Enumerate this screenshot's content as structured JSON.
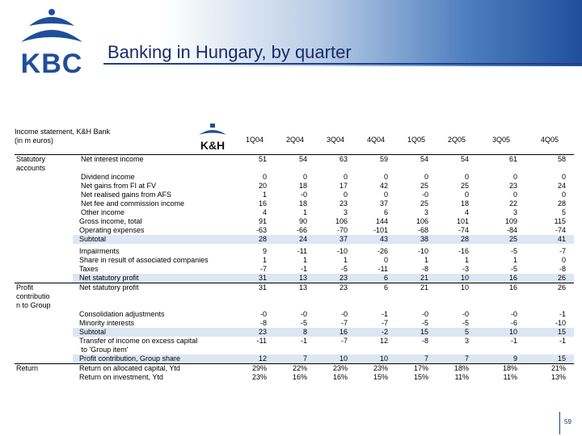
{
  "title": "Banking in Hungary, by quarter",
  "logo_text": "KBC",
  "kh_logo_text": "K&H",
  "table": {
    "header_label": "Income statement, K&H Bank\n(in m euros)",
    "columns": [
      "1Q04",
      "2Q04",
      "3Q04",
      "4Q04",
      "1Q05",
      "2Q05",
      "3Q05",
      "4Q05"
    ],
    "sections": [
      {
        "name": "Statutory\naccounts",
        "groups": [
          {
            "shade": false,
            "rows": [
              {
                "label": "Net interest income",
                "indent": "ind1",
                "values": [
                  "51",
                  "54",
                  "63",
                  "59",
                  "54",
                  "54",
                  "61",
                  "58"
                ]
              },
              {
                "label": "Dividend income",
                "indent": "ind1",
                "values": [
                  "0",
                  "0",
                  "0",
                  "0",
                  "0",
                  "0",
                  "0",
                  "0"
                ]
              },
              {
                "label": "Net gains from FI at FV",
                "indent": "ind1",
                "values": [
                  "20",
                  "18",
                  "17",
                  "42",
                  "25",
                  "25",
                  "23",
                  "24"
                ]
              },
              {
                "label": "Net realised gains from AFS",
                "indent": "ind1",
                "values": [
                  "1",
                  "-0",
                  "0",
                  "0",
                  "-0",
                  "0",
                  "0",
                  "0"
                ]
              },
              {
                "label": "Net fee and commission income",
                "indent": "ind1",
                "values": [
                  "16",
                  "18",
                  "23",
                  "37",
                  "25",
                  "18",
                  "22",
                  "28"
                ]
              },
              {
                "label": "Other income",
                "indent": "ind1",
                "values": [
                  "4",
                  "1",
                  "3",
                  "6",
                  "3",
                  "4",
                  "3",
                  "5"
                ]
              },
              {
                "label": "Gross income, total",
                "indent": "ind2",
                "values": [
                  "91",
                  "90",
                  "106",
                  "144",
                  "106",
                  "101",
                  "109",
                  "115"
                ]
              },
              {
                "label": "Operating expenses",
                "indent": "ind2",
                "values": [
                  "-63",
                  "-66",
                  "-70",
                  "-101",
                  "-68",
                  "-74",
                  "-84",
                  "-74"
                ]
              }
            ]
          },
          {
            "shade": true,
            "rows": [
              {
                "label": "Subtotal",
                "indent": "ind2",
                "values": [
                  "28",
                  "24",
                  "37",
                  "43",
                  "38",
                  "28",
                  "25",
                  "41"
                ]
              }
            ]
          },
          {
            "shade": false,
            "gap": true,
            "rows": [
              {
                "label": "Impairments",
                "indent": "ind2",
                "values": [
                  "9",
                  "-11",
                  "-10",
                  "-26",
                  "-10",
                  "-16",
                  "-5",
                  "-7"
                ]
              },
              {
                "label": "Share in result of associated companies",
                "indent": "ind2",
                "values": [
                  "1",
                  "1",
                  "1",
                  "0",
                  "1",
                  "1",
                  "1",
                  "0"
                ]
              },
              {
                "label": "Taxes",
                "indent": "ind2",
                "values": [
                  "-7",
                  "-1",
                  "-5",
                  "-11",
                  "-8",
                  "-3",
                  "-5",
                  "-8"
                ]
              }
            ]
          },
          {
            "shade": true,
            "rows": [
              {
                "label": "Net statutory profit",
                "indent": "ind2",
                "values": [
                  "31",
                  "13",
                  "23",
                  "6",
                  "21",
                  "10",
                  "16",
                  "26"
                ]
              }
            ]
          }
        ]
      },
      {
        "name": "Profit\ncontributio\nn to Group",
        "groups": [
          {
            "shade": false,
            "rows": [
              {
                "label": "Net statutory profit",
                "indent": "ind2",
                "values": [
                  "31",
                  "13",
                  "23",
                  "6",
                  "21",
                  "10",
                  "16",
                  "26"
                ]
              },
              {
                "label": "Consolidation adjustments",
                "indent": "ind2",
                "values": [
                  "-0",
                  "-0",
                  "-0",
                  "-1",
                  "-0",
                  "-0",
                  "-0",
                  "-1"
                ]
              },
              {
                "label": "Minority interests",
                "indent": "ind2",
                "values": [
                  "-8",
                  "-5",
                  "-7",
                  "-7",
                  "-5",
                  "-5",
                  "-6",
                  "-10"
                ]
              }
            ]
          },
          {
            "shade": true,
            "rows": [
              {
                "label": "Subtotal",
                "indent": "ind2",
                "values": [
                  "23",
                  "8",
                  "16",
                  "-2",
                  "15",
                  "5",
                  "10",
                  "15"
                ]
              }
            ]
          },
          {
            "shade": false,
            "rows": [
              {
                "label": "Transfer of income on excess capital\n to 'Group item'",
                "indent": "ind2",
                "values": [
                  "-11",
                  "-1",
                  "-7",
                  "12",
                  "-8",
                  "3",
                  "-1",
                  "-1"
                ]
              }
            ]
          },
          {
            "shade": true,
            "rows": [
              {
                "label": "Profit contribution, Group share",
                "indent": "ind2",
                "values": [
                  "12",
                  "7",
                  "10",
                  "10",
                  "7",
                  "7",
                  "9",
                  "15"
                ]
              }
            ]
          }
        ]
      },
      {
        "name": "Return",
        "groups": [
          {
            "shade": false,
            "rows": [
              {
                "label": "Return on allocated capital, Ytd",
                "indent": "ind2",
                "values": [
                  "29%",
                  "22%",
                  "23%",
                  "23%",
                  "17%",
                  "18%",
                  "18%",
                  "21%"
                ]
              },
              {
                "label": "Return on investment, Ytd",
                "indent": "ind2",
                "values": [
                  "23%",
                  "16%",
                  "16%",
                  "15%",
                  "15%",
                  "11%",
                  "11%",
                  "13%"
                ]
              }
            ]
          }
        ]
      }
    ]
  },
  "page_number": "59",
  "colors": {
    "title": "#1b2b6b",
    "brand_blue": "#1f3f8a",
    "shade": "#dde6f3",
    "banner_dark": "#1f4f9a"
  }
}
